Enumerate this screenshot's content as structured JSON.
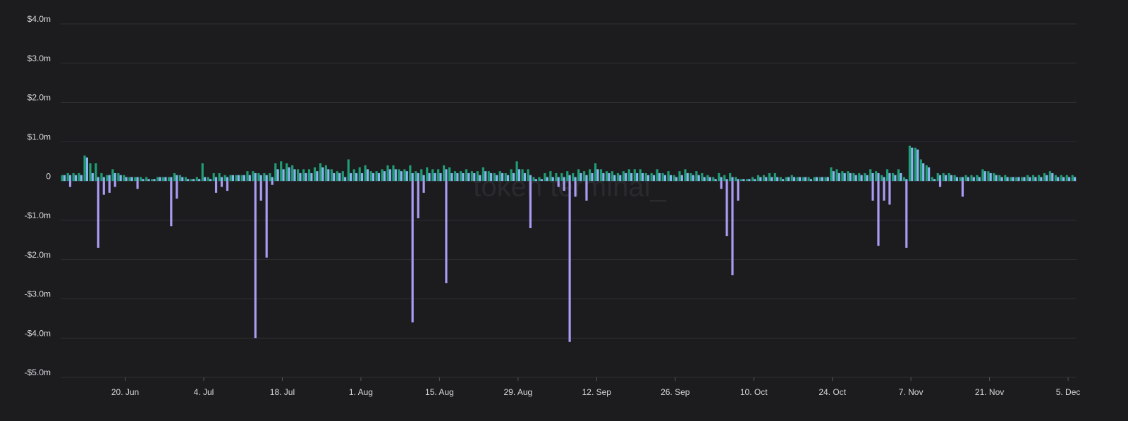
{
  "chart_data": {
    "type": "bar",
    "watermark": "token terminal_",
    "categories": [
      null,
      null,
      null,
      null,
      null,
      null,
      null,
      null,
      null,
      null,
      null,
      "20. Jun",
      null,
      null,
      null,
      null,
      null,
      null,
      null,
      null,
      null,
      null,
      null,
      null,
      null,
      "4. Jul",
      null,
      null,
      null,
      null,
      null,
      null,
      null,
      null,
      null,
      null,
      null,
      null,
      null,
      "18. Jul",
      null,
      null,
      null,
      null,
      null,
      null,
      null,
      null,
      null,
      null,
      null,
      null,
      null,
      "1. Aug",
      null,
      null,
      null,
      null,
      null,
      null,
      null,
      null,
      null,
      null,
      null,
      null,
      null,
      "15. Aug",
      null,
      null,
      null,
      null,
      null,
      null,
      null,
      null,
      null,
      null,
      null,
      null,
      null,
      "29. Aug",
      null,
      null,
      null,
      null,
      null,
      null,
      null,
      null,
      null,
      null,
      null,
      null,
      null,
      "12. Sep",
      null,
      null,
      null,
      null,
      null,
      null,
      null,
      null,
      null,
      null,
      null,
      null,
      null,
      "26. Sep",
      null,
      null,
      null,
      null,
      null,
      null,
      null,
      null,
      null,
      null,
      null,
      null,
      null,
      "10. Oct",
      null,
      null,
      null,
      null,
      null,
      null,
      null,
      null,
      null,
      null,
      null,
      null,
      null,
      "24. Oct",
      null,
      null,
      null,
      null,
      null,
      null,
      null,
      null,
      null,
      null,
      null,
      null,
      null,
      "7. Nov",
      null,
      null,
      null,
      null,
      null,
      null,
      null,
      null,
      null,
      null,
      null,
      null,
      null,
      "21. Nov",
      null,
      null,
      null,
      null,
      null,
      null,
      null,
      null,
      null,
      null,
      null,
      null,
      null,
      "5. Dec",
      null
    ],
    "series": [
      {
        "color": "#1f9d74",
        "values": [
          0.15,
          0.2,
          0.2,
          0.2,
          0.65,
          0.45,
          0.45,
          0.2,
          0.15,
          0.3,
          0.2,
          0.15,
          0.1,
          0.1,
          0.1,
          0.1,
          0.05,
          0.1,
          0.1,
          0.1,
          0.2,
          0.15,
          0.1,
          0.05,
          0.1,
          0.45,
          0.1,
          0.2,
          0.2,
          0.15,
          0.15,
          0.15,
          0.15,
          0.25,
          0.25,
          0.2,
          0.2,
          0.2,
          0.45,
          0.5,
          0.45,
          0.4,
          0.3,
          0.3,
          0.3,
          0.35,
          0.45,
          0.4,
          0.3,
          0.25,
          0.25,
          0.55,
          0.3,
          0.35,
          0.4,
          0.25,
          0.25,
          0.3,
          0.4,
          0.4,
          0.3,
          0.3,
          0.4,
          0.25,
          0.3,
          0.35,
          0.3,
          0.3,
          0.4,
          0.35,
          0.25,
          0.25,
          0.3,
          0.25,
          0.25,
          0.35,
          0.25,
          0.2,
          0.25,
          0.2,
          0.3,
          0.5,
          0.3,
          0.3,
          0.1,
          0.1,
          0.2,
          0.25,
          0.2,
          0.2,
          0.25,
          0.2,
          0.3,
          0.25,
          0.3,
          0.45,
          0.3,
          0.25,
          0.25,
          0.2,
          0.25,
          0.3,
          0.3,
          0.3,
          0.2,
          0.2,
          0.3,
          0.2,
          0.25,
          0.15,
          0.25,
          0.3,
          0.2,
          0.25,
          0.2,
          0.15,
          0.1,
          0.2,
          0.15,
          0.2,
          0.1,
          0.05,
          0.05,
          0.1,
          0.15,
          0.15,
          0.2,
          0.2,
          0.1,
          0.1,
          0.15,
          0.1,
          0.1,
          0.1,
          0.1,
          0.1,
          0.1,
          0.35,
          0.3,
          0.25,
          0.25,
          0.2,
          0.2,
          0.2,
          0.3,
          0.25,
          0.15,
          0.3,
          0.2,
          0.3,
          0.1,
          0.9,
          0.85,
          0.55,
          0.4,
          0.1,
          0.2,
          0.2,
          0.2,
          0.15,
          0.1,
          0.15,
          0.15,
          0.15,
          0.3,
          0.25,
          0.2,
          0.15,
          0.15,
          0.1,
          0.1,
          0.1,
          0.15,
          0.15,
          0.15,
          0.2,
          0.25,
          0.15,
          0.15,
          0.15,
          0.15
        ]
      },
      {
        "color": "#86b6ee",
        "values": [
          0.15,
          0.15,
          0.15,
          0.15,
          0.6,
          0.2,
          0.1,
          0.1,
          0.15,
          0.2,
          0.15,
          0.1,
          0.1,
          0.1,
          0.05,
          0.05,
          0.05,
          0.1,
          0.1,
          0.1,
          0.15,
          0.1,
          0.05,
          0.05,
          0.05,
          0.1,
          0.05,
          0.1,
          0.1,
          0.1,
          0.15,
          0.15,
          0.15,
          0.15,
          0.2,
          0.15,
          0.15,
          0.1,
          0.3,
          0.3,
          0.35,
          0.3,
          0.2,
          0.2,
          0.2,
          0.25,
          0.35,
          0.3,
          0.2,
          0.2,
          0.1,
          0.2,
          0.2,
          0.2,
          0.3,
          0.2,
          0.2,
          0.25,
          0.3,
          0.3,
          0.25,
          0.25,
          0.2,
          0.2,
          0.15,
          0.2,
          0.2,
          0.2,
          0.3,
          0.2,
          0.2,
          0.2,
          0.2,
          0.2,
          0.15,
          0.25,
          0.2,
          0.15,
          0.2,
          0.15,
          0.2,
          0.3,
          0.2,
          0.15,
          0.05,
          0.05,
          0.1,
          0.1,
          0.1,
          0.1,
          0.15,
          0.1,
          0.2,
          0.15,
          0.2,
          0.3,
          0.2,
          0.2,
          0.15,
          0.15,
          0.2,
          0.2,
          0.2,
          0.2,
          0.15,
          0.15,
          0.2,
          0.15,
          0.15,
          0.1,
          0.15,
          0.2,
          0.15,
          0.15,
          0.1,
          0.1,
          0.05,
          0.1,
          0.05,
          0.1,
          0.05,
          0.05,
          0.05,
          0.05,
          0.1,
          0.1,
          0.1,
          0.1,
          0.05,
          0.1,
          0.1,
          0.1,
          0.1,
          0.05,
          0.1,
          0.1,
          0.1,
          0.25,
          0.2,
          0.2,
          0.2,
          0.15,
          0.15,
          0.15,
          0.2,
          0.2,
          0.1,
          0.2,
          0.15,
          0.2,
          0.05,
          0.85,
          0.8,
          0.45,
          0.35,
          0.05,
          0.15,
          0.15,
          0.15,
          0.1,
          0.1,
          0.1,
          0.1,
          0.1,
          0.25,
          0.2,
          0.15,
          0.1,
          0.1,
          0.1,
          0.1,
          0.1,
          0.1,
          0.1,
          0.1,
          0.15,
          0.2,
          0.1,
          0.1,
          0.1,
          0.1
        ]
      },
      {
        "color": "#a99cf2",
        "values": [
          null,
          -0.15,
          null,
          null,
          null,
          null,
          -1.7,
          -0.35,
          -0.3,
          -0.15,
          null,
          null,
          null,
          -0.2,
          null,
          null,
          null,
          null,
          null,
          -1.15,
          -0.45,
          null,
          null,
          null,
          null,
          null,
          null,
          -0.3,
          -0.15,
          -0.25,
          null,
          null,
          null,
          null,
          -4.0,
          -0.5,
          -1.95,
          -0.1,
          null,
          null,
          null,
          null,
          null,
          null,
          null,
          null,
          null,
          null,
          null,
          null,
          null,
          null,
          null,
          null,
          null,
          null,
          null,
          null,
          null,
          null,
          null,
          null,
          -3.6,
          -0.95,
          -0.3,
          null,
          null,
          null,
          -2.6,
          null,
          null,
          null,
          null,
          null,
          null,
          null,
          null,
          null,
          null,
          null,
          null,
          null,
          null,
          -1.2,
          null,
          null,
          null,
          null,
          -0.15,
          -0.25,
          -4.1,
          -0.4,
          null,
          -0.5,
          null,
          null,
          null,
          null,
          null,
          null,
          null,
          null,
          null,
          null,
          null,
          null,
          null,
          null,
          null,
          null,
          null,
          null,
          null,
          null,
          null,
          null,
          null,
          -0.2,
          -1.4,
          -2.4,
          -0.5,
          null,
          null,
          null,
          null,
          null,
          null,
          null,
          null,
          null,
          null,
          null,
          null,
          null,
          null,
          null,
          null,
          null,
          null,
          null,
          null,
          null,
          null,
          null,
          -0.5,
          -1.65,
          -0.5,
          -0.6,
          null,
          null,
          -1.7,
          null,
          null,
          null,
          null,
          null,
          -0.15,
          null,
          null,
          null,
          -0.4,
          null,
          null,
          null,
          null,
          null,
          null,
          null,
          null,
          null,
          null,
          null,
          null,
          null,
          null,
          null,
          null,
          null,
          null,
          null,
          null
        ]
      }
    ],
    "ylim": [
      -5,
      4
    ],
    "yticks": [
      {
        "value": -5,
        "label": "-$5.0m"
      },
      {
        "value": -4,
        "label": "-$4.0m"
      },
      {
        "value": -3,
        "label": "-$3.0m"
      },
      {
        "value": -2,
        "label": "-$2.0m"
      },
      {
        "value": -1,
        "label": "-$1.0m"
      },
      0,
      {
        "value": 1,
        "label": "$1.0m"
      },
      {
        "value": 2,
        "label": "$2.0m"
      },
      {
        "value": 3,
        "label": "$3.0m"
      },
      {
        "value": 4,
        "label": "$4.0m"
      }
    ],
    "grid": true
  }
}
